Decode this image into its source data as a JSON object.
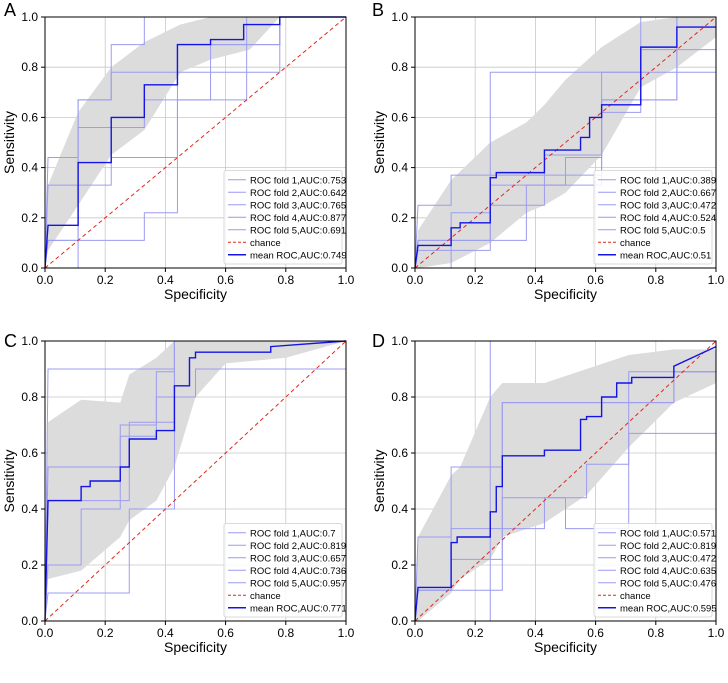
{
  "chart_data": [
    {
      "panel": "A",
      "type": "line",
      "xlabel": "Specificity",
      "ylabel": "Sensitivity",
      "xlim": [
        0,
        1
      ],
      "ylim": [
        0,
        1
      ],
      "xticks": [
        "0.0",
        "0.2",
        "0.4",
        "0.6",
        "0.8",
        "1.0"
      ],
      "yticks": [
        "0.0",
        "0.2",
        "0.4",
        "0.6",
        "0.8",
        "1.0"
      ],
      "grid": true,
      "legend_position": "bottom-right",
      "colors": {
        "fold": "#9c9cf0",
        "mean": "#1414e6",
        "chance": "#e0281e",
        "band": "#dcdcdc"
      },
      "band": {
        "x": [
          0,
          0.01,
          0.11,
          0.22,
          0.33,
          0.45,
          0.55,
          0.68,
          0.78,
          1.0
        ],
        "lower": [
          0,
          0.07,
          0.25,
          0.45,
          0.55,
          0.78,
          0.83,
          0.87,
          1.0,
          1.0
        ],
        "upper": [
          0,
          0.33,
          0.62,
          0.8,
          0.9,
          0.97,
          1.0,
          1.0,
          1.0,
          1.0
        ]
      },
      "folds": [
        {
          "label": "ROC fold 1,AUC:0.753",
          "x": [
            0,
            0.01,
            0.11,
            0.11,
            0.22,
            0.22,
            0.44,
            0.44,
            0.78,
            0.78,
            1.0
          ],
          "y": [
            0,
            0.11,
            0.11,
            0.67,
            0.67,
            0.78,
            0.78,
            0.89,
            0.89,
            1.0,
            1.0
          ]
        },
        {
          "label": "ROC fold 2,AUC:0.642",
          "x": [
            0,
            0.11,
            0.11,
            0.33,
            0.33,
            0.44,
            0.44,
            0.67,
            0.67,
            0.78,
            0.78,
            1.0
          ],
          "y": [
            0,
            0,
            0.11,
            0.11,
            0.22,
            0.22,
            0.67,
            0.67,
            0.78,
            0.78,
            1.0,
            1.0
          ]
        },
        {
          "label": "ROC fold 3,AUC:0.765",
          "x": [
            0,
            0.01,
            0.11,
            0.11,
            0.33,
            0.33,
            0.44,
            0.44,
            0.67,
            0.67,
            1.0
          ],
          "y": [
            0,
            0.33,
            0.33,
            0.56,
            0.56,
            0.67,
            0.67,
            0.78,
            0.78,
            1.0,
            1.0
          ]
        },
        {
          "label": "ROC fold 4,AUC:0.877",
          "x": [
            0,
            0.01,
            0.11,
            0.11,
            0.22,
            0.22,
            0.33,
            0.33,
            0.44,
            0.44,
            1.0
          ],
          "y": [
            0,
            0.44,
            0.44,
            0.67,
            0.67,
            0.89,
            0.89,
            1.0,
            1.0,
            1.0,
            1.0
          ]
        },
        {
          "label": "ROC fold 5,AUC:0.691",
          "x": [
            0,
            0.01,
            0.11,
            0.11,
            0.22,
            0.22,
            0.44,
            0.44,
            0.55,
            0.55,
            0.78,
            0.78,
            1.0
          ],
          "y": [
            0,
            0.11,
            0.11,
            0.33,
            0.33,
            0.44,
            0.44,
            0.67,
            0.67,
            0.89,
            0.89,
            1.0,
            1.0
          ]
        }
      ],
      "mean": {
        "label": "mean ROC,AUC:0.749",
        "x": [
          0,
          0.01,
          0.11,
          0.11,
          0.22,
          0.22,
          0.33,
          0.33,
          0.44,
          0.44,
          0.55,
          0.55,
          0.66,
          0.66,
          0.78,
          0.78,
          1.0
        ],
        "y": [
          0,
          0.17,
          0.17,
          0.42,
          0.42,
          0.6,
          0.6,
          0.73,
          0.73,
          0.89,
          0.89,
          0.91,
          0.91,
          0.97,
          0.97,
          1.0,
          1.0
        ]
      },
      "chance_label": "chance"
    },
    {
      "panel": "B",
      "type": "line",
      "xlabel": "Specificity",
      "ylabel": "Sensitivity",
      "xlim": [
        0,
        1
      ],
      "ylim": [
        0,
        1
      ],
      "xticks": [
        "0.0",
        "0.2",
        "0.4",
        "0.6",
        "0.8",
        "1.0"
      ],
      "yticks": [
        "0.0",
        "0.2",
        "0.4",
        "0.6",
        "0.8",
        "1.0"
      ],
      "grid": true,
      "legend_position": "bottom-right",
      "colors": {
        "fold": "#9c9cf0",
        "mean": "#1414e6",
        "chance": "#e0281e",
        "band": "#dcdcdc"
      },
      "band": {
        "x": [
          0,
          0.01,
          0.12,
          0.25,
          0.37,
          0.43,
          0.5,
          0.62,
          0.75,
          0.87,
          1.0
        ],
        "lower": [
          0,
          0.0,
          0.02,
          0.1,
          0.22,
          0.25,
          0.3,
          0.45,
          0.72,
          0.8,
          0.92
        ],
        "upper": [
          0,
          0.15,
          0.35,
          0.5,
          0.58,
          0.65,
          0.75,
          0.88,
          0.98,
          1.0,
          1.0
        ]
      },
      "folds": [
        {
          "label": "ROC fold 1,AUC:0.389",
          "x": [
            0,
            0.12,
            0.12,
            0.37,
            0.37,
            0.62,
            0.62,
            0.87,
            0.87,
            1.0
          ],
          "y": [
            0,
            0,
            0.11,
            0.11,
            0.33,
            0.33,
            0.67,
            0.67,
            0.78,
            0.78
          ]
        },
        {
          "label": "ROC fold 2,AUC:0.667",
          "x": [
            0,
            0.01,
            0.25,
            0.25,
            0.5,
            0.5,
            0.75,
            0.75,
            1.0
          ],
          "y": [
            0,
            0.11,
            0.11,
            0.78,
            0.78,
            0.78,
            0.78,
            1.0,
            1.0
          ]
        },
        {
          "label": "ROC fold 3,AUC:0.472",
          "x": [
            0,
            0.01,
            0.12,
            0.12,
            0.25,
            0.25,
            0.5,
            0.5,
            0.62,
            0.62,
            0.87,
            0.87,
            1.0
          ],
          "y": [
            0,
            0.11,
            0.11,
            0.22,
            0.22,
            0.33,
            0.33,
            0.44,
            0.44,
            0.67,
            0.67,
            1.0,
            1.0
          ]
        },
        {
          "label": "ROC fold 4,AUC:0.524",
          "x": [
            0,
            0.01,
            0.12,
            0.12,
            0.37,
            0.37,
            0.62,
            0.62,
            0.75,
            0.75,
            1.0
          ],
          "y": [
            0,
            0.25,
            0.25,
            0.37,
            0.37,
            0.37,
            0.37,
            0.62,
            0.62,
            0.87,
            0.87
          ]
        },
        {
          "label": "ROC fold 5,AUC:0.5",
          "x": [
            0,
            0.01,
            0.25,
            0.25,
            0.43,
            0.43,
            0.62,
            0.62,
            0.87,
            0.87,
            1.0
          ],
          "y": [
            0,
            0.07,
            0.07,
            0.25,
            0.25,
            0.45,
            0.45,
            0.78,
            0.78,
            1.0,
            1.0
          ]
        }
      ],
      "mean": {
        "label": "mean ROC,AUC:0.51",
        "x": [
          0,
          0.01,
          0.12,
          0.12,
          0.15,
          0.15,
          0.25,
          0.25,
          0.27,
          0.27,
          0.37,
          0.37,
          0.43,
          0.43,
          0.5,
          0.5,
          0.55,
          0.55,
          0.58,
          0.58,
          0.62,
          0.62,
          0.75,
          0.75,
          0.87,
          0.87,
          1.0
        ],
        "y": [
          0,
          0.09,
          0.09,
          0.16,
          0.16,
          0.18,
          0.18,
          0.36,
          0.36,
          0.38,
          0.38,
          0.38,
          0.38,
          0.47,
          0.47,
          0.47,
          0.47,
          0.52,
          0.52,
          0.6,
          0.6,
          0.65,
          0.65,
          0.88,
          0.88,
          0.96,
          0.96
        ]
      },
      "chance_label": "chance"
    },
    {
      "panel": "C",
      "type": "line",
      "xlabel": "Specificity",
      "ylabel": "Sensitivity",
      "xlim": [
        0,
        1
      ],
      "ylim": [
        0,
        1
      ],
      "xticks": [
        "0.0",
        "0.2",
        "0.4",
        "0.6",
        "0.8",
        "1.0"
      ],
      "yticks": [
        "0.0",
        "0.2",
        "0.4",
        "0.6",
        "0.8",
        "1.0"
      ],
      "grid": true,
      "legend_position": "bottom-right",
      "colors": {
        "fold": "#9c9cf0",
        "mean": "#1414e6",
        "chance": "#e0281e",
        "band": "#dcdcdc"
      },
      "band": {
        "x": [
          0,
          0.01,
          0.12,
          0.25,
          0.28,
          0.37,
          0.43,
          0.5,
          0.6,
          0.8,
          1.0
        ],
        "lower": [
          0,
          0.15,
          0.18,
          0.3,
          0.36,
          0.43,
          0.55,
          0.8,
          0.92,
          0.94,
          1.0
        ],
        "upper": [
          0,
          0.71,
          0.79,
          0.78,
          0.88,
          0.94,
          1.0,
          1.0,
          1.0,
          1.0,
          1.0
        ]
      },
      "folds": [
        {
          "label": "ROC fold 1,AUC:0.7",
          "x": [
            0,
            0.01,
            0.1,
            0.1,
            0.28,
            0.28,
            0.43,
            0.43,
            1.0
          ],
          "y": [
            0,
            0.1,
            0.1,
            0.1,
            0.1,
            0.4,
            0.4,
            1.0,
            1.0
          ]
        },
        {
          "label": "ROC fold 2,AUC:0.819",
          "x": [
            0,
            0.01,
            0.12,
            0.12,
            0.25,
            0.25,
            0.37,
            0.37,
            0.5,
            0.5,
            1.0
          ],
          "y": [
            0,
            0.2,
            0.2,
            0.4,
            0.4,
            0.7,
            0.7,
            0.8,
            0.8,
            0.9,
            0.9
          ]
        },
        {
          "label": "ROC fold 3,AUC:0.657",
          "x": [
            0,
            0.01,
            0.12,
            0.12,
            0.28,
            0.28,
            0.43,
            0.43,
            1.0
          ],
          "y": [
            0,
            0.43,
            0.43,
            0.43,
            0.43,
            0.71,
            0.71,
            1.0,
            1.0
          ]
        },
        {
          "label": "ROC fold 4,AUC:0.736",
          "x": [
            0,
            0.01,
            0.25,
            0.25,
            0.37,
            0.37,
            0.43,
            0.43,
            1.0
          ],
          "y": [
            0,
            0.55,
            0.55,
            0.66,
            0.66,
            0.89,
            0.89,
            1.0,
            1.0
          ]
        },
        {
          "label": "ROC fold 5,AUC:0.957",
          "x": [
            0,
            0.01,
            0.43,
            0.43,
            1.0
          ],
          "y": [
            0,
            0.9,
            0.9,
            1.0,
            1.0
          ]
        }
      ],
      "mean": {
        "label": "mean ROC,AUC:0.771",
        "x": [
          0,
          0.01,
          0.12,
          0.12,
          0.15,
          0.15,
          0.25,
          0.25,
          0.28,
          0.28,
          0.37,
          0.37,
          0.43,
          0.43,
          0.48,
          0.48,
          0.5,
          0.5,
          0.75,
          0.75,
          1.0
        ],
        "y": [
          0,
          0.43,
          0.43,
          0.48,
          0.48,
          0.5,
          0.5,
          0.55,
          0.55,
          0.65,
          0.65,
          0.68,
          0.68,
          0.84,
          0.84,
          0.94,
          0.94,
          0.96,
          0.96,
          0.98,
          1.0
        ]
      },
      "chance_label": "chance"
    },
    {
      "panel": "D",
      "type": "line",
      "xlabel": "Specificity",
      "ylabel": "Sensitivity",
      "xlim": [
        0,
        1
      ],
      "ylim": [
        0,
        1
      ],
      "xticks": [
        "0.0",
        "0.2",
        "0.4",
        "0.6",
        "0.8",
        "1.0"
      ],
      "yticks": [
        "0.0",
        "0.2",
        "0.4",
        "0.6",
        "0.8",
        "1.0"
      ],
      "grid": true,
      "legend_position": "bottom-right",
      "colors": {
        "fold": "#9c9cf0",
        "mean": "#1414e6",
        "chance": "#e0281e",
        "band": "#dcdcdc"
      },
      "band": {
        "x": [
          0,
          0.01,
          0.12,
          0.15,
          0.25,
          0.29,
          0.43,
          0.57,
          0.71,
          0.86,
          1.0
        ],
        "lower": [
          0,
          0.0,
          0.1,
          0.15,
          0.22,
          0.3,
          0.35,
          0.45,
          0.62,
          0.78,
          0.85
        ],
        "upper": [
          0,
          0.3,
          0.52,
          0.55,
          0.8,
          0.85,
          0.85,
          0.9,
          0.95,
          0.97,
          0.97
        ]
      },
      "folds": [
        {
          "label": "ROC fold 1,AUC:0.571",
          "x": [
            0,
            0.01,
            0.12,
            0.12,
            0.25,
            0.25,
            1.0
          ],
          "y": [
            0,
            0.0,
            0.0,
            0.0,
            0.0,
            1.0,
            1.0
          ]
        },
        {
          "label": "ROC fold 2,AUC:0.819",
          "x": [
            0,
            0.01,
            0.12,
            0.12,
            0.29,
            0.29,
            0.71,
            0.71,
            1.0
          ],
          "y": [
            0,
            0.3,
            0.3,
            0.55,
            0.55,
            0.78,
            0.78,
            0.89,
            0.89
          ]
        },
        {
          "label": "ROC fold 3,AUC:0.472",
          "x": [
            0,
            0.01,
            0.29,
            0.29,
            0.43,
            0.43,
            0.57,
            0.57,
            0.71,
            0.71,
            0.86,
            0.86,
            1.0
          ],
          "y": [
            0,
            0.11,
            0.11,
            0.33,
            0.33,
            0.44,
            0.44,
            0.56,
            0.56,
            0.78,
            0.78,
            0.89,
            0.89
          ]
        },
        {
          "label": "ROC fold 4,AUC:0.635",
          "x": [
            0,
            0.01,
            0.12,
            0.12,
            0.29,
            0.29,
            0.57,
            0.57,
            0.86,
            0.86,
            1.0
          ],
          "y": [
            0,
            0.11,
            0.11,
            0.33,
            0.33,
            0.78,
            0.78,
            0.78,
            0.78,
            0.89,
            0.89
          ]
        },
        {
          "label": "ROC fold 5,AUC:0.476",
          "x": [
            0,
            0.01,
            0.12,
            0.12,
            0.29,
            0.29,
            0.5,
            0.5,
            0.71,
            0.71,
            1.0
          ],
          "y": [
            0,
            0.11,
            0.11,
            0.22,
            0.22,
            0.44,
            0.44,
            0.33,
            0.33,
            0.67,
            0.67
          ]
        }
      ],
      "mean": {
        "label": "mean ROC,AUC:0.595",
        "x": [
          0,
          0.01,
          0.12,
          0.12,
          0.14,
          0.14,
          0.25,
          0.25,
          0.27,
          0.27,
          0.29,
          0.29,
          0.43,
          0.43,
          0.55,
          0.55,
          0.57,
          0.57,
          0.62,
          0.62,
          0.67,
          0.67,
          0.72,
          0.72,
          0.86,
          0.86,
          1.0
        ],
        "y": [
          0,
          0.12,
          0.12,
          0.28,
          0.28,
          0.3,
          0.3,
          0.39,
          0.39,
          0.48,
          0.48,
          0.59,
          0.59,
          0.61,
          0.61,
          0.72,
          0.72,
          0.73,
          0.73,
          0.8,
          0.8,
          0.85,
          0.85,
          0.87,
          0.87,
          0.91,
          0.98
        ]
      },
      "chance_label": "chance"
    }
  ]
}
